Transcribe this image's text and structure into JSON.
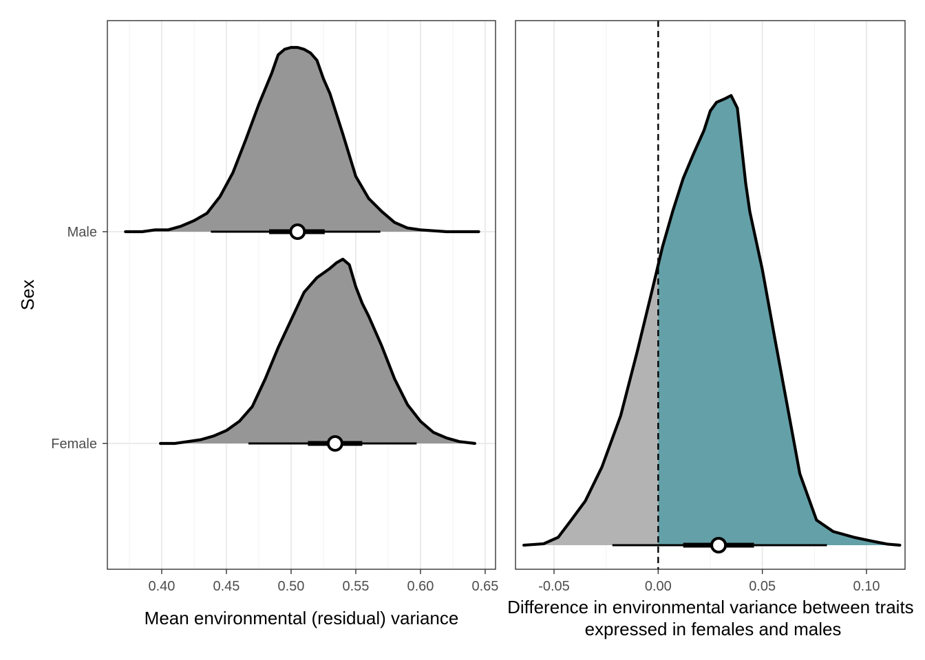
{
  "chart_data": [
    {
      "type": "density",
      "title": "",
      "xlabel": "Mean environmental (residual) variance",
      "ylabel": "Sex",
      "xlim": [
        0.358,
        0.658
      ],
      "x_ticks": [
        0.4,
        0.45,
        0.5,
        0.55,
        0.6,
        0.65
      ],
      "x_tick_labels": [
        "0.40",
        "0.45",
        "0.50",
        "0.55",
        "0.60",
        "0.65"
      ],
      "grid": true,
      "categories": [
        "Male",
        "Female"
      ],
      "fill_color": "#969696",
      "series": [
        {
          "name": "Male",
          "density": [
            [
              0.372,
              0.0
            ],
            [
              0.385,
              0.0
            ],
            [
              0.395,
              0.01
            ],
            [
              0.405,
              0.01
            ],
            [
              0.415,
              0.03
            ],
            [
              0.425,
              0.06
            ],
            [
              0.435,
              0.1
            ],
            [
              0.445,
              0.19
            ],
            [
              0.455,
              0.32
            ],
            [
              0.465,
              0.5
            ],
            [
              0.475,
              0.69
            ],
            [
              0.485,
              0.86
            ],
            [
              0.49,
              0.96
            ],
            [
              0.495,
              0.99
            ],
            [
              0.5,
              1.0
            ],
            [
              0.505,
              1.0
            ],
            [
              0.51,
              0.99
            ],
            [
              0.515,
              0.97
            ],
            [
              0.52,
              0.93
            ],
            [
              0.525,
              0.83
            ],
            [
              0.53,
              0.75
            ],
            [
              0.54,
              0.53
            ],
            [
              0.55,
              0.3
            ],
            [
              0.56,
              0.18
            ],
            [
              0.57,
              0.11
            ],
            [
              0.58,
              0.05
            ],
            [
              0.59,
              0.02
            ],
            [
              0.6,
              0.01
            ],
            [
              0.62,
              0.0
            ],
            [
              0.645,
              0.0
            ]
          ],
          "point": 0.505,
          "interval_66": [
            0.483,
            0.526
          ],
          "interval_95": [
            0.438,
            0.569
          ]
        },
        {
          "name": "Female",
          "density": [
            [
              0.399,
              0.0
            ],
            [
              0.41,
              0.0
            ],
            [
              0.42,
              0.01
            ],
            [
              0.43,
              0.02
            ],
            [
              0.44,
              0.04
            ],
            [
              0.45,
              0.07
            ],
            [
              0.46,
              0.12
            ],
            [
              0.47,
              0.2
            ],
            [
              0.48,
              0.35
            ],
            [
              0.49,
              0.52
            ],
            [
              0.5,
              0.67
            ],
            [
              0.51,
              0.82
            ],
            [
              0.52,
              0.9
            ],
            [
              0.53,
              0.95
            ],
            [
              0.535,
              0.98
            ],
            [
              0.54,
              1.0
            ],
            [
              0.545,
              0.97
            ],
            [
              0.55,
              0.85
            ],
            [
              0.555,
              0.76
            ],
            [
              0.56,
              0.69
            ],
            [
              0.57,
              0.53
            ],
            [
              0.58,
              0.35
            ],
            [
              0.59,
              0.21
            ],
            [
              0.6,
              0.12
            ],
            [
              0.61,
              0.06
            ],
            [
              0.62,
              0.03
            ],
            [
              0.63,
              0.01
            ],
            [
              0.642,
              0.0
            ]
          ],
          "point": 0.534,
          "interval_66": [
            0.513,
            0.555
          ],
          "interval_95": [
            0.467,
            0.597
          ]
        }
      ]
    },
    {
      "type": "density",
      "title": "",
      "xlabel": "Difference in environmental variance between traits expressed in females and males",
      "xlabel_lines": [
        "Difference in environmental variance between traits",
        "expressed in females and males"
      ],
      "ylabel": "",
      "xlim": [
        -0.0685,
        0.1185
      ],
      "x_ticks": [
        -0.05,
        0.0,
        0.05,
        0.1
      ],
      "x_tick_labels": [
        "-0.05",
        "0.00",
        "0.05",
        "0.10"
      ],
      "grid": true,
      "reference_line": 0,
      "fill_below_zero": "#b3b3b3",
      "fill_above_zero": "#64a0a8",
      "series": [
        {
          "name": "",
          "density": [
            [
              -0.0645,
              0.0
            ],
            [
              -0.055,
              0.004
            ],
            [
              -0.048,
              0.022
            ],
            [
              -0.042,
              0.068
            ],
            [
              -0.035,
              0.123
            ],
            [
              -0.027,
              0.218
            ],
            [
              -0.018,
              0.361
            ],
            [
              -0.01,
              0.541
            ],
            [
              -0.003,
              0.708
            ],
            [
              0.002,
              0.83
            ],
            [
              0.007,
              0.931
            ],
            [
              0.012,
              1.022
            ],
            [
              0.017,
              1.091
            ],
            [
              0.022,
              1.156
            ],
            [
              0.025,
              1.21
            ],
            [
              0.028,
              1.234
            ],
            [
              0.032,
              1.244
            ],
            [
              0.035,
              1.253
            ],
            [
              0.038,
              1.218
            ],
            [
              0.042,
              1.009
            ],
            [
              0.044,
              0.929
            ],
            [
              0.05,
              0.768
            ],
            [
              0.056,
              0.576
            ],
            [
              0.062,
              0.388
            ],
            [
              0.068,
              0.199
            ],
            [
              0.076,
              0.07
            ],
            [
              0.084,
              0.038
            ],
            [
              0.094,
              0.022
            ],
            [
              0.102,
              0.012
            ],
            [
              0.11,
              0.003
            ],
            [
              0.116,
              0.0
            ]
          ],
          "point": 0.029,
          "interval_66": [
            0.012,
            0.046
          ],
          "interval_95": [
            -0.022,
            0.081
          ]
        }
      ]
    }
  ]
}
